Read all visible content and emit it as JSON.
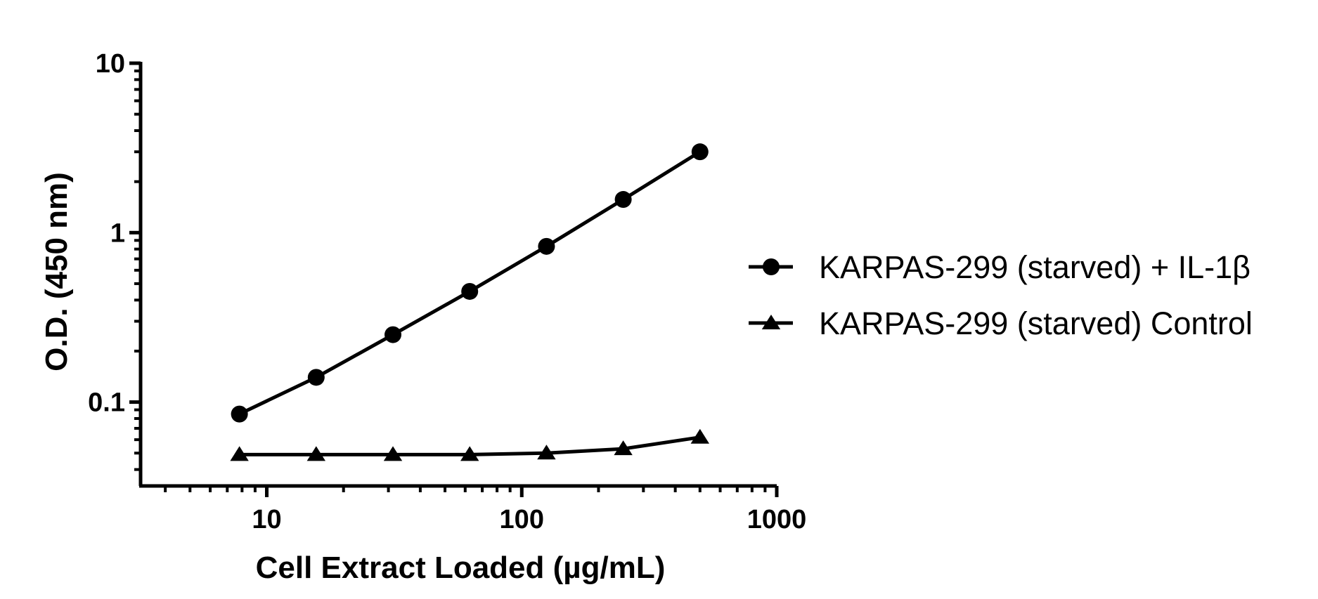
{
  "chart_data": {
    "type": "line",
    "title": "",
    "xlabel": "Cell Extract Loaded (µg/mL)",
    "ylabel": "O.D. (450 nm)",
    "x_scale": "log",
    "y_scale": "log",
    "xlim": [
      3.2,
      1000
    ],
    "ylim": [
      0.032,
      10
    ],
    "x_ticks": [
      10,
      100,
      1000
    ],
    "x_tick_labels": [
      "10",
      "100",
      "1000"
    ],
    "y_ticks": [
      0.1,
      1,
      10
    ],
    "y_tick_labels": [
      "0.1",
      "1",
      "10"
    ],
    "grid": false,
    "legend_position": "right",
    "x": [
      7.8125,
      15.625,
      31.25,
      62.5,
      125,
      250,
      500
    ],
    "series": [
      {
        "name": "KARPAS-299 (starved) + IL-1β",
        "marker": "circle",
        "color": "#000000",
        "values": [
          0.085,
          0.14,
          0.25,
          0.45,
          0.83,
          1.57,
          3.0
        ]
      },
      {
        "name": "KARPAS-299 (starved) Control",
        "marker": "triangle",
        "color": "#000000",
        "values": [
          0.049,
          0.049,
          0.049,
          0.049,
          0.05,
          0.053,
          0.062
        ]
      }
    ]
  }
}
